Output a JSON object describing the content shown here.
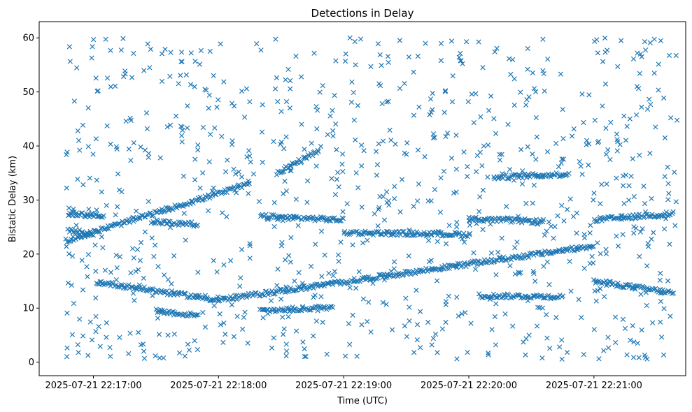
{
  "chart_data": {
    "type": "scatter",
    "title": "Detections in Delay",
    "xlabel": "Time (UTC)",
    "ylabel": "Bistatic Delay (km)",
    "x_axis": "time",
    "xlim": [
      "2025-07-21 22:16:34",
      "2025-07-21 22:21:44"
    ],
    "ylim": [
      -2.5,
      63
    ],
    "x_ticks": [
      "2025-07-21 22:17:00",
      "2025-07-21 22:18:00",
      "2025-07-21 22:19:00",
      "2025-07-21 22:20:00",
      "2025-07-21 22:21:00"
    ],
    "y_ticks": [
      0,
      10,
      20,
      30,
      40,
      50,
      60
    ],
    "grid": false,
    "marker": "x",
    "color": "#1f77b4",
    "series": [
      {
        "tracks": [
          {
            "start": [
              "2025-07-21 22:16:47",
              22.5
            ],
            "end": [
              "2025-07-21 22:18:15",
              33.0
            ]
          },
          {
            "start": [
              "2025-07-21 22:17:02",
              14.8
            ],
            "end": [
              "2025-07-21 22:18:00",
              11.5
            ]
          },
          {
            "start": [
              "2025-07-21 22:18:00",
              11.5
            ],
            "end": [
              "2025-07-21 22:21:00",
              21.5
            ]
          },
          {
            "start": [
              "2025-07-21 22:18:28",
              35.0
            ],
            "end": [
              "2025-07-21 22:18:48",
              39.0
            ]
          },
          {
            "start": [
              "2025-07-21 22:18:20",
              27.0
            ],
            "end": [
              "2025-07-21 22:19:00",
              26.3
            ]
          },
          {
            "start": [
              "2025-07-21 22:19:00",
              24.0
            ],
            "end": [
              "2025-07-21 22:20:00",
              23.6
            ]
          },
          {
            "start": [
              "2025-07-21 22:20:00",
              26.5
            ],
            "end": [
              "2025-07-21 22:20:36",
              26.0
            ]
          },
          {
            "start": [
              "2025-07-21 22:21:00",
              26.3
            ],
            "end": [
              "2025-07-21 22:21:38",
              27.5
            ]
          },
          {
            "start": [
              "2025-07-21 22:21:00",
              15.0
            ],
            "end": [
              "2025-07-21 22:21:38",
              12.8
            ]
          },
          {
            "start": [
              "2025-07-21 22:18:20",
              9.5
            ],
            "end": [
              "2025-07-21 22:18:55",
              10.2
            ]
          },
          {
            "start": [
              "2025-07-21 22:20:05",
              12.3
            ],
            "end": [
              "2025-07-21 22:20:45",
              12.1
            ]
          },
          {
            "start": [
              "2025-07-21 22:20:12",
              34.2
            ],
            "end": [
              "2025-07-21 22:20:48",
              34.8
            ]
          },
          {
            "start": [
              "2025-07-21 22:17:28",
              26.0
            ],
            "end": [
              "2025-07-21 22:17:50",
              25.5
            ]
          },
          {
            "start": [
              "2025-07-21 22:17:30",
              9.5
            ],
            "end": [
              "2025-07-21 22:17:50",
              8.6
            ]
          },
          {
            "start": [
              "2025-07-21 22:16:48",
              27.5
            ],
            "end": [
              "2025-07-21 22:17:05",
              27.0
            ]
          },
          {
            "start": [
              "2025-07-21 22:16:48",
              24.5
            ],
            "end": [
              "2025-07-21 22:17:00",
              23.5
            ]
          }
        ],
        "background_clutter": {
          "x_range": [
            "2025-07-21 22:16:47",
            "2025-07-21 22:21:40"
          ],
          "y_range": [
            0.5,
            60
          ],
          "count": 900
        }
      }
    ]
  }
}
